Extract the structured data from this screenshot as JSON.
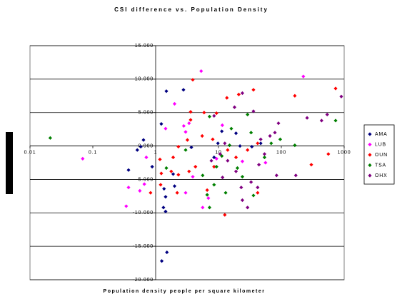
{
  "chart_data": {
    "type": "scatter",
    "title": "CSI difference vs. Population Density",
    "x_label": "Population density people per square kilometer",
    "xscale": "log",
    "grid": true,
    "legend_position": "right",
    "marker": "diamond",
    "xlim": [
      0.01,
      1000
    ],
    "xticks": [
      0.01,
      0.1,
      1,
      10,
      100,
      1000
    ],
    "ylim": [
      -20,
      15
    ],
    "yticks": [
      {
        "value": 15,
        "label": "15.000"
      },
      {
        "value": 10,
        "label": "10.000"
      },
      {
        "value": 5,
        "label": "5.000"
      },
      {
        "value": 0,
        "label": "0.000"
      },
      {
        "value": -5,
        "label": "-5.000"
      },
      {
        "value": -10,
        "label": "-10.000"
      },
      {
        "value": -15,
        "label": "-15.000"
      },
      {
        "value": -20,
        "label": "-20.000"
      }
    ],
    "series": [
      {
        "name": "AMA",
        "color": "#000080",
        "x": [
          1.48,
          2.77,
          1.23,
          0.64,
          0.58,
          0.51,
          0.37,
          0.88,
          1.36,
          1.44,
          1.33,
          1.44,
          1.51,
          1.25,
          3.7,
          9.8,
          11.3,
          19,
          8.5,
          22,
          34,
          2.0,
          47,
          1.9
        ],
        "values": [
          8.2,
          8.4,
          3.3,
          0.9,
          -0.1,
          -0.6,
          -3.6,
          -3.1,
          -6.4,
          -7.6,
          -9.2,
          -9.8,
          -15.9,
          -17.2,
          -0.2,
          0.4,
          2.2,
          1.9,
          -1.7,
          0,
          -0.1,
          -6.0,
          0.4,
          -4.2
        ]
      },
      {
        "name": "LUB",
        "color": "#ff00ff",
        "x": [
          5.3,
          2.0,
          2.8,
          3.4,
          3.0,
          0.069,
          0.37,
          0.56,
          0.34,
          0.66,
          0.71,
          1.44,
          3.9,
          5.6,
          6.9,
          224,
          11.5,
          9.3,
          3.0,
          24,
          56
        ],
        "values": [
          11.2,
          6.3,
          3.0,
          3.4,
          2.1,
          -1.9,
          -6.2,
          -6.7,
          -9.0,
          -5.7,
          -1.7,
          2.6,
          -4.6,
          -9.2,
          -7.8,
          10.4,
          3.1,
          -1.9,
          -7.0,
          -2.3,
          -2.5
        ]
      },
      {
        "name": "OUN",
        "color": "#ff0000",
        "x": [
          3.9,
          5.9,
          3.6,
          3.6,
          9.3,
          13.6,
          21,
          36,
          164,
          731,
          560,
          300,
          1.17,
          0.83,
          1.23,
          1.77,
          2.3,
          3.4,
          4.3,
          6.6,
          8.5,
          12.6,
          19,
          29,
          42,
          1.9,
          2.3,
          3.2,
          5.5,
          8.1,
          14,
          1.2,
          42,
          2.2
        ],
        "values": [
          9.9,
          5.0,
          5.1,
          3.9,
          4.9,
          7.2,
          7.7,
          8.4,
          7.5,
          8.6,
          -1.2,
          -2.8,
          -2.0,
          -7.0,
          -4.1,
          -3.8,
          -4.3,
          -3.8,
          -3.1,
          -6.6,
          -3.1,
          -10.3,
          -1.7,
          -0.6,
          0.4,
          -1.7,
          -0.1,
          0.9,
          1.5,
          1.0,
          -0.6,
          -5.8,
          -7.0,
          -7.0
        ]
      },
      {
        "name": "TSA",
        "color": "#008000",
        "x": [
          0.021,
          1.48,
          3.0,
          5.6,
          6.6,
          7.2,
          9.3,
          11.3,
          13,
          15,
          20,
          29,
          33,
          36,
          54,
          96,
          164,
          731,
          69,
          7.2,
          8.5,
          16,
          24
        ],
        "values": [
          1.2,
          -3.3,
          -0.6,
          -4.4,
          -7.3,
          -9.2,
          -3.1,
          -1.5,
          -7.0,
          0.1,
          -3.3,
          4.7,
          2.0,
          -7.4,
          -1.7,
          1.0,
          0.1,
          3.8,
          0.4,
          4.4,
          -5.8,
          2.6,
          -4.6
        ]
      },
      {
        "name": "OHX",
        "color": "#800080",
        "x": [
          900,
          537,
          437,
          257,
          90,
          66,
          79,
          47,
          36,
          24,
          18,
          12.6,
          10.6,
          7.7,
          14,
          19,
          23,
          29,
          24,
          33,
          42,
          44,
          11.6,
          8.5,
          84,
          170,
          54
        ],
        "values": [
          7.4,
          4.7,
          3.8,
          4.2,
          3.4,
          1.5,
          2.0,
          1.0,
          5.2,
          7.9,
          5.8,
          0.4,
          -1.2,
          -2.2,
          -2.2,
          -3.8,
          -6.2,
          -9.2,
          -8.1,
          -5.4,
          -6.2,
          -2.8,
          -4.7,
          4.5,
          -4.4,
          -4.4,
          -1.2
        ]
      }
    ]
  }
}
